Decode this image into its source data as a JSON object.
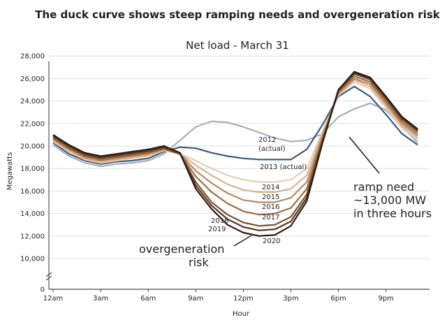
{
  "chart_data": {
    "type": "line",
    "title": "The duck curve shows steep ramping needs and overgeneration risk",
    "subtitle": "Net load - March 31",
    "xlabel": "Hour",
    "ylabel": "Megawatts",
    "x": [
      0,
      1,
      2,
      3,
      4,
      5,
      6,
      7,
      8,
      9,
      10,
      11,
      12,
      13,
      14,
      15,
      16,
      17,
      18,
      19,
      20,
      21,
      22,
      23
    ],
    "x_tick_labels": [
      "12am",
      "3am",
      "6am",
      "9am",
      "12pm",
      "3pm",
      "6pm",
      "9pm"
    ],
    "x_tick_hours": [
      0,
      3,
      6,
      9,
      12,
      15,
      18,
      21
    ],
    "y_tick_labels": [
      "0",
      "10,000",
      "12,000",
      "14,000",
      "16,000",
      "18,000",
      "20,000",
      "22,000",
      "24,000",
      "26,000",
      "28,000"
    ],
    "y_tick_values": [
      0,
      10000,
      12000,
      14000,
      16000,
      18000,
      20000,
      22000,
      24000,
      26000,
      28000
    ],
    "ylim": [
      0,
      28000
    ],
    "axis_break": true,
    "grid": true,
    "series": [
      {
        "name": "2012",
        "sublabel": "(actual)",
        "color": "#a9aebd",
        "values": [
          20100,
          19100,
          18500,
          18200,
          18400,
          18500,
          18700,
          19300,
          20500,
          21700,
          22200,
          22100,
          21700,
          21200,
          20700,
          20400,
          20500,
          21100,
          22600,
          23300,
          23800,
          23200,
          21700,
          20300
        ]
      },
      {
        "name": "2013",
        "sublabel": "(actual)",
        "color": "#3c5a7a",
        "values": [
          20300,
          19300,
          18700,
          18400,
          18600,
          18700,
          18900,
          19500,
          19900,
          19800,
          19400,
          19100,
          18900,
          18800,
          18800,
          18800,
          19700,
          21900,
          24400,
          25300,
          24400,
          22800,
          21100,
          20100
        ]
      },
      {
        "name": "2014",
        "color": "#e5cdb6",
        "values": [
          20400,
          19500,
          18800,
          18500,
          18700,
          18900,
          19100,
          19600,
          19300,
          18700,
          18000,
          17400,
          17000,
          16800,
          16800,
          17000,
          18000,
          21300,
          24500,
          25700,
          25100,
          23400,
          21600,
          20500
        ]
      },
      {
        "name": "2015",
        "color": "#d7b292",
        "values": [
          20500,
          19600,
          18900,
          18600,
          18800,
          19000,
          19200,
          19700,
          19300,
          18300,
          17400,
          16600,
          16100,
          15900,
          15900,
          16200,
          17400,
          21100,
          24600,
          25900,
          25300,
          23600,
          21800,
          20700
        ]
      },
      {
        "name": "2016",
        "color": "#b78760",
        "values": [
          20600,
          19700,
          19000,
          18700,
          18900,
          19100,
          19300,
          19700,
          19300,
          17800,
          16700,
          15800,
          15200,
          15000,
          15000,
          15400,
          16800,
          20900,
          24700,
          26000,
          25500,
          23800,
          22000,
          20900
        ]
      },
      {
        "name": "2017",
        "color": "#9a6b45",
        "values": [
          20700,
          19800,
          19100,
          18800,
          19000,
          19200,
          19400,
          19800,
          19300,
          17300,
          15900,
          14900,
          14200,
          13900,
          14000,
          14500,
          16200,
          20700,
          24800,
          26200,
          25700,
          24000,
          22200,
          21100
        ]
      },
      {
        "name": "2018",
        "color": "#7b4f2e",
        "values": [
          20800,
          19900,
          19200,
          18900,
          19100,
          19300,
          19500,
          19800,
          19300,
          16800,
          15000,
          13900,
          13200,
          12900,
          13000,
          13700,
          15700,
          20500,
          24900,
          26400,
          25900,
          24200,
          22400,
          21300
        ]
      },
      {
        "name": "2019",
        "color": "#55381f",
        "values": [
          20900,
          20000,
          19300,
          19000,
          19200,
          19400,
          19600,
          19900,
          19400,
          16500,
          14700,
          13500,
          12800,
          12500,
          12600,
          13300,
          15400,
          20400,
          25000,
          26500,
          26000,
          24300,
          22500,
          21400
        ]
      },
      {
        "name": "2020",
        "color": "#2d1a0d",
        "values": [
          21000,
          20100,
          19400,
          19100,
          19300,
          19500,
          19700,
          20000,
          19400,
          16200,
          14400,
          13000,
          12300,
          12000,
          12100,
          12900,
          15100,
          20300,
          25000,
          26600,
          26100,
          24400,
          22600,
          21500
        ]
      }
    ],
    "annotations": [
      {
        "id": "ramp-need",
        "lines": [
          "ramp need",
          "~13,000 MW",
          "in three hours"
        ]
      },
      {
        "id": "overgeneration",
        "lines": [
          "overgeneration",
          "risk"
        ]
      }
    ]
  }
}
